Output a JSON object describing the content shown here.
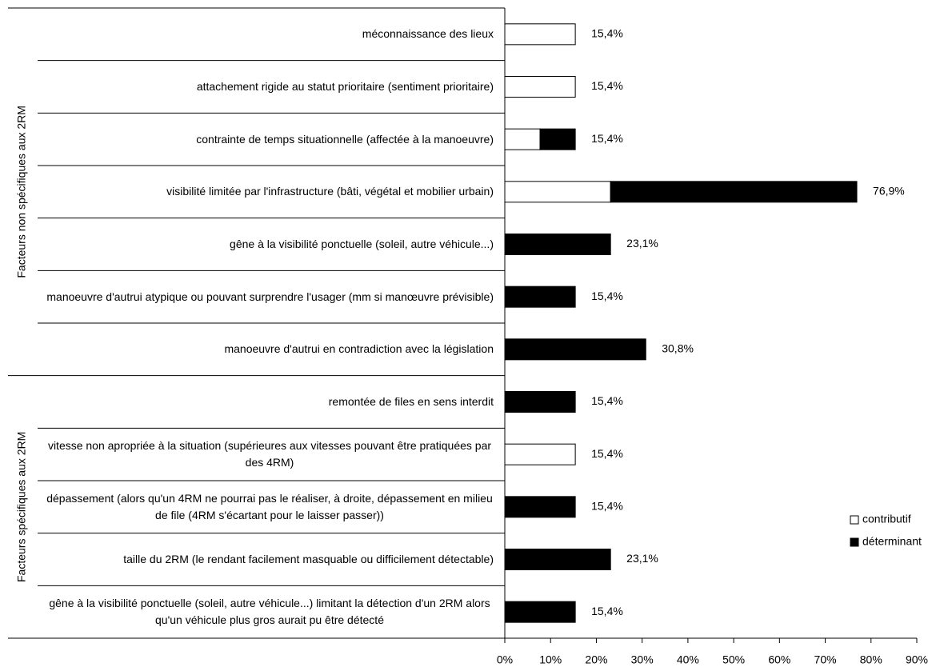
{
  "chart_data": {
    "type": "stacked-bar-horizontal",
    "groups": [
      {
        "label": "Facteurs non spécifiques aux 2RM",
        "categories": [
          "méconnaissance des lieux",
          "attachement rigide au statut prioritaire (sentiment prioritaire)",
          "contrainte de temps situationnelle (affectée à la manoeuvre)",
          "visibilité limitée par l'infrastructure (bâti, végétal et mobilier urbain)",
          "gêne à la visibilité ponctuelle (soleil, autre véhicule...)",
          "manoeuvre d'autrui atypique ou pouvant surprendre l'usager (mm si manœuvre prévisible)",
          "manoeuvre d'autrui en contradiction avec la législation"
        ]
      },
      {
        "label": "Facteurs spécifiques aux 2RM",
        "categories": [
          "remontée de files en sens interdit",
          "vitesse  non apropriée à la situation (supérieures aux vitesses pouvant être pratiquées par des 4RM)",
          "dépassement (alors qu'un 4RM ne pourrai pas le réaliser, à droite, dépassement en milieu de file (4RM s'écartant pour le laisser passer))",
          "taille du 2RM (le rendant facilement masquable ou difficilement détectable)",
          "gêne à la visibilité ponctuelle (soleil, autre véhicule...) limitant la détection d'un 2RM alors qu'un véhicule plus gros aurait pu être détecté"
        ]
      }
    ],
    "series": [
      {
        "name": "contributif",
        "color": "#ffffff",
        "values": [
          15.4,
          15.4,
          7.7,
          23.1,
          0,
          0,
          0,
          0,
          15.4,
          0,
          0,
          0
        ]
      },
      {
        "name": "déterminant",
        "color": "#000000",
        "values": [
          0,
          0,
          7.7,
          53.8,
          23.1,
          15.4,
          30.8,
          15.4,
          0,
          15.4,
          23.1,
          15.4
        ]
      }
    ],
    "totals": [
      15.4,
      15.4,
      15.4,
      76.9,
      23.1,
      15.4,
      30.8,
      15.4,
      15.4,
      15.4,
      23.1,
      15.4
    ],
    "total_labels": [
      "15,4%",
      "15,4%",
      "15,4%",
      "76,9%",
      "23,1%",
      "15,4%",
      "30,8%",
      "15,4%",
      "15,4%",
      "15,4%",
      "23,1%",
      "15,4%"
    ],
    "xlim": [
      0,
      90
    ],
    "xticks": [
      {
        "value": 0,
        "label": "0%"
      },
      {
        "value": 10,
        "label": "10%"
      },
      {
        "value": 20,
        "label": "20%"
      },
      {
        "value": 30,
        "label": "30%"
      },
      {
        "value": 40,
        "label": "40%"
      },
      {
        "value": 50,
        "label": "50%"
      },
      {
        "value": 60,
        "label": "60%"
      },
      {
        "value": 70,
        "label": "70%"
      },
      {
        "value": 80,
        "label": "80%"
      },
      {
        "value": 90,
        "label": "90%"
      }
    ],
    "legend": "right"
  }
}
